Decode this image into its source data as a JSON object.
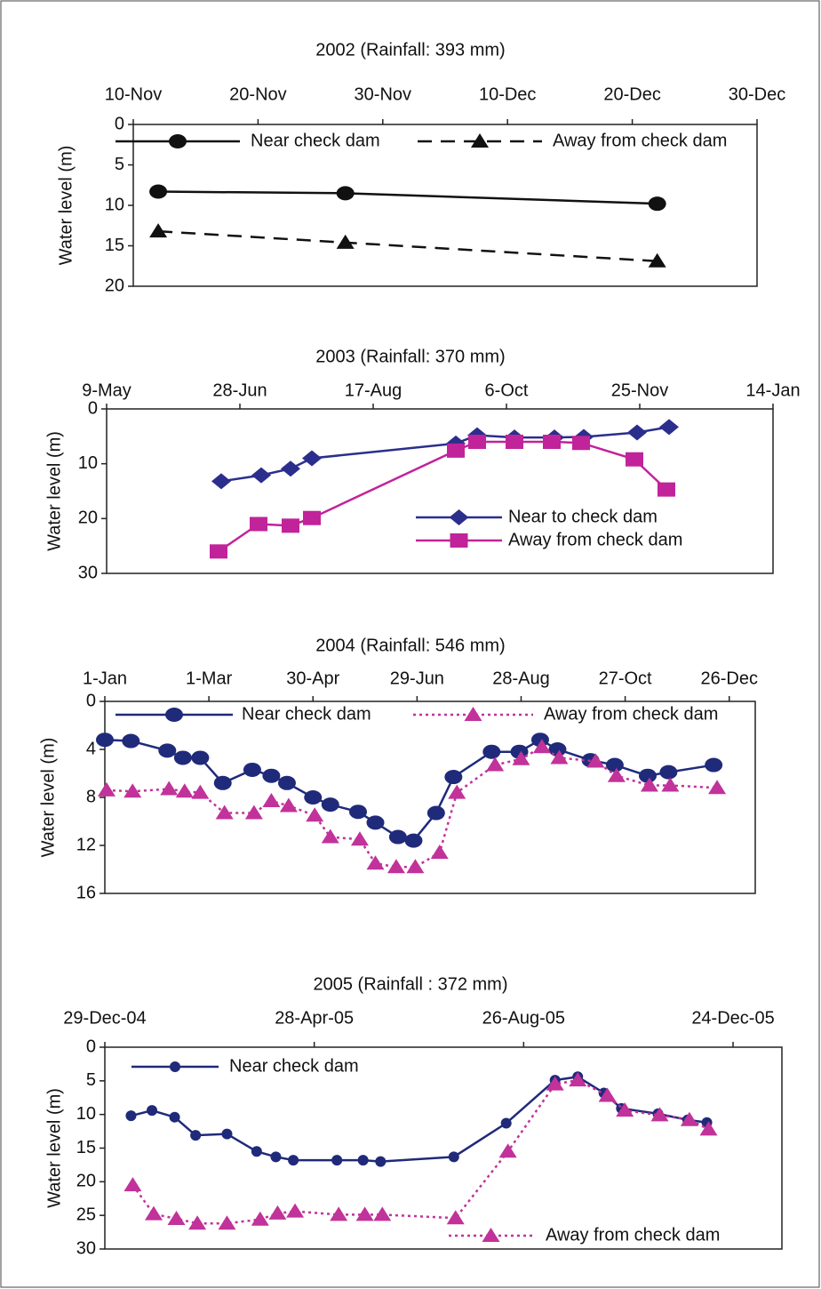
{
  "chart_data": [
    {
      "type": "line",
      "title": "2002 (Rainfall: 393 mm)",
      "y_label": "Water level (m)",
      "y_inverted": true,
      "xlim": [
        0,
        50
      ],
      "xticks": [
        {
          "value": 0,
          "label": "10-Nov"
        },
        {
          "value": 10,
          "label": "20-Nov"
        },
        {
          "value": 20,
          "label": "30-Nov"
        },
        {
          "value": 30,
          "label": "10-Dec"
        },
        {
          "value": 40,
          "label": "20-Dec"
        },
        {
          "value": 50,
          "label": "30-Dec"
        }
      ],
      "ylim": [
        0,
        20
      ],
      "yticks": [
        0,
        5,
        10,
        15,
        20
      ],
      "series": [
        {
          "name": "Near check dam",
          "color": "#111111",
          "marker": "circle",
          "dash": "solid",
          "x": [
            2,
            17,
            42
          ],
          "values": [
            8.3,
            8.5,
            9.8
          ]
        },
        {
          "name": "Away from check dam",
          "color": "#111111",
          "marker": "triangle",
          "dash": "dashed",
          "x": [
            2,
            17,
            42
          ],
          "values": [
            13.2,
            14.6,
            16.9
          ]
        }
      ]
    },
    {
      "type": "line",
      "title": "2003 (Rainfall: 370 mm)",
      "y_label": "Water level (m)",
      "y_inverted": true,
      "xlim": [
        0,
        250
      ],
      "xticks": [
        {
          "value": 0,
          "label": "9-May"
        },
        {
          "value": 50,
          "label": "28-Jun"
        },
        {
          "value": 100,
          "label": "17-Aug"
        },
        {
          "value": 150,
          "label": "6-Oct"
        },
        {
          "value": 200,
          "label": "25-Nov"
        },
        {
          "value": 250,
          "label": "14-Jan"
        }
      ],
      "ylim": [
        0,
        30
      ],
      "yticks": [
        0,
        10,
        20,
        30
      ],
      "series": [
        {
          "name": "Near to check dam",
          "color": "#2b2e8c",
          "marker": "diamond",
          "dash": "solid",
          "x": [
            43,
            58,
            69,
            77,
            131,
            139,
            153,
            168,
            179,
            199,
            211
          ],
          "values": [
            13.2,
            12.1,
            10.9,
            9.0,
            6.3,
            4.8,
            5.2,
            5.2,
            5.1,
            4.3,
            3.3
          ]
        },
        {
          "name": "Away from check dam",
          "color": "#c1239a",
          "marker": "square",
          "dash": "solid",
          "x": [
            42,
            57,
            69,
            77,
            131,
            139,
            153,
            167,
            178,
            198,
            210
          ],
          "values": [
            26,
            21,
            21.3,
            19.9,
            7.6,
            6.0,
            6.0,
            6.0,
            6.2,
            9.2,
            14.7
          ]
        }
      ]
    },
    {
      "type": "line",
      "title": "2004 (Rainfall: 546 mm)",
      "y_label": "Water level (m)",
      "y_inverted": true,
      "xlim": [
        0,
        375
      ],
      "xticks": [
        {
          "value": 0,
          "label": "1-Jan"
        },
        {
          "value": 60,
          "label": "1-Mar"
        },
        {
          "value": 120,
          "label": "30-Apr"
        },
        {
          "value": 180,
          "label": "29-Jun"
        },
        {
          "value": 240,
          "label": "28-Aug"
        },
        {
          "value": 300,
          "label": "27-Oct"
        },
        {
          "value": 360,
          "label": "26-Dec"
        }
      ],
      "ylim": [
        0,
        16
      ],
      "yticks": [
        0,
        4,
        8,
        12,
        16
      ],
      "series": [
        {
          "name": "Near check dam",
          "color": "#1f2a7a",
          "marker": "circle",
          "dash": "solid",
          "x": [
            0,
            15,
            36,
            45,
            55,
            68,
            85,
            96,
            105,
            120,
            130,
            146,
            156,
            169,
            178,
            191,
            201,
            223,
            239,
            251,
            261,
            280,
            294,
            313,
            325,
            351
          ],
          "values": [
            3.2,
            3.3,
            4.1,
            4.7,
            4.7,
            6.8,
            5.7,
            6.2,
            6.8,
            8.0,
            8.6,
            9.2,
            10.1,
            11.3,
            11.6,
            9.3,
            6.3,
            4.2,
            4.2,
            3.2,
            4.0,
            4.9,
            5.3,
            6.2,
            5.9,
            5.3
          ]
        },
        {
          "name": "Away from check dam",
          "color": "#c1329a",
          "marker": "triangle",
          "dash": "dotted",
          "x": [
            1,
            16,
            37,
            46,
            55,
            69,
            86,
            96,
            106,
            121,
            130,
            147,
            156,
            168,
            179,
            193,
            203,
            225,
            240,
            252,
            262,
            283,
            295,
            314,
            326,
            353
          ],
          "values": [
            7.4,
            7.5,
            7.3,
            7.5,
            7.6,
            9.3,
            9.3,
            8.3,
            8.7,
            9.5,
            11.3,
            11.5,
            13.5,
            13.8,
            13.8,
            12.6,
            7.6,
            5.3,
            4.8,
            3.8,
            4.7,
            5.0,
            6.2,
            7.0,
            7.0,
            7.2
          ]
        }
      ]
    },
    {
      "type": "line",
      "title": "2005 (Rainfall : 372 mm)",
      "y_label": "Water level (m)",
      "y_inverted": true,
      "xlim": [
        0,
        388
      ],
      "xticks": [
        {
          "value": 0,
          "label": "29-Dec-04"
        },
        {
          "value": 120,
          "label": "28-Apr-05"
        },
        {
          "value": 240,
          "label": "26-Aug-05"
        },
        {
          "value": 360,
          "label": "24-Dec-05"
        }
      ],
      "ylim": [
        0,
        30
      ],
      "yticks": [
        0,
        5,
        10,
        15,
        20,
        25,
        30
      ],
      "series": [
        {
          "name": "Near check dam",
          "color": "#1f2a7a",
          "marker": "circle-small",
          "dash": "solid",
          "x": [
            15,
            27,
            40,
            52,
            70,
            87,
            98,
            108,
            133,
            148,
            158,
            200,
            230,
            258,
            271,
            286,
            296,
            317,
            334,
            345
          ],
          "values": [
            10.2,
            9.4,
            10.4,
            13.1,
            12.9,
            15.5,
            16.3,
            16.8,
            16.8,
            16.8,
            17.0,
            16.3,
            11.3,
            4.9,
            4.4,
            6.8,
            9.1,
            9.9,
            10.8,
            11.2
          ]
        },
        {
          "name": "Away from check dam",
          "color": "#c1329a",
          "marker": "triangle",
          "dash": "dotted",
          "x": [
            16,
            28,
            41,
            53,
            70,
            89,
            99,
            109,
            134,
            149,
            159,
            201,
            231,
            258,
            271,
            288,
            298,
            318,
            335,
            346
          ],
          "values": [
            20.5,
            24.8,
            25.5,
            26.2,
            26.2,
            25.6,
            24.7,
            24.4,
            24.9,
            24.9,
            24.9,
            25.4,
            15.5,
            5.5,
            4.9,
            7.2,
            9.4,
            10.1,
            10.8,
            12.2
          ]
        }
      ]
    }
  ]
}
